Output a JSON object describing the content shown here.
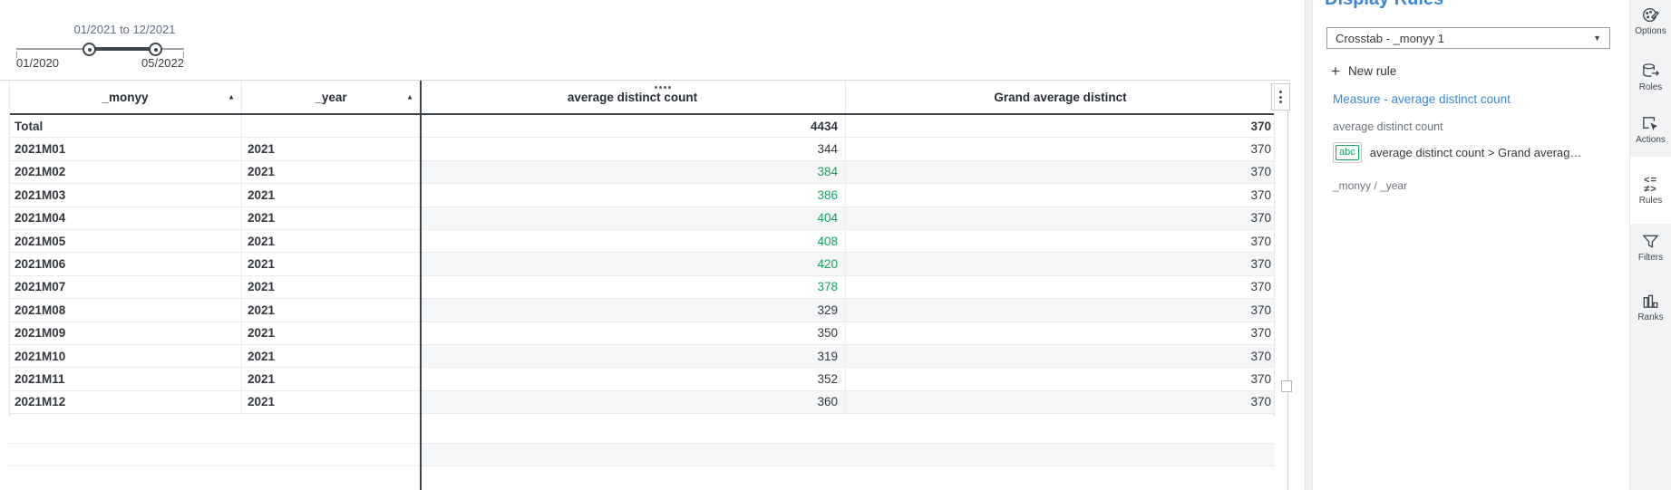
{
  "slider": {
    "selected_range": "01/2021 to 12/2021",
    "min_label": "01/2020",
    "max_label": "05/2022"
  },
  "crosstab": {
    "columns": [
      {
        "label": "_monyy",
        "sortable": true,
        "sort": "asc"
      },
      {
        "label": "_year",
        "sortable": true,
        "sort": "asc"
      },
      {
        "label": "average distinct count",
        "sortable": false
      },
      {
        "label": "Grand average distinct",
        "sortable": false
      }
    ],
    "rows": [
      {
        "monyy": "Total",
        "year": "",
        "avg": "4434",
        "grand": "370",
        "total": true
      },
      {
        "monyy": "2021M01",
        "year": "2021",
        "avg": "344",
        "grand": "370"
      },
      {
        "monyy": "2021M02",
        "year": "2021",
        "avg": "384",
        "grand": "370",
        "rule_hit": true
      },
      {
        "monyy": "2021M03",
        "year": "2021",
        "avg": "386",
        "grand": "370",
        "rule_hit": true
      },
      {
        "monyy": "2021M04",
        "year": "2021",
        "avg": "404",
        "grand": "370",
        "rule_hit": true
      },
      {
        "monyy": "2021M05",
        "year": "2021",
        "avg": "408",
        "grand": "370",
        "rule_hit": true
      },
      {
        "monyy": "2021M06",
        "year": "2021",
        "avg": "420",
        "grand": "370",
        "rule_hit": true
      },
      {
        "monyy": "2021M07",
        "year": "2021",
        "avg": "378",
        "grand": "370",
        "rule_hit": true
      },
      {
        "monyy": "2021M08",
        "year": "2021",
        "avg": "329",
        "grand": "370"
      },
      {
        "monyy": "2021M09",
        "year": "2021",
        "avg": "350",
        "grand": "370"
      },
      {
        "monyy": "2021M10",
        "year": "2021",
        "avg": "319",
        "grand": "370"
      },
      {
        "monyy": "2021M11",
        "year": "2021",
        "avg": "352",
        "grand": "370"
      },
      {
        "monyy": "2021M12",
        "year": "2021",
        "avg": "360",
        "grand": "370",
        "rule_hit": false
      }
    ]
  },
  "panel": {
    "title": "Display Rules",
    "object_selector_value": "Crosstab - _monyy 1",
    "new_rule_label": "New rule",
    "measure_link": "Measure - average distinct count",
    "rule_group_label": "average distinct count",
    "rule_chip": "abc",
    "rule_text": "average distinct count > Grand averag…",
    "hierarchy_label": "_monyy / _year"
  },
  "rail": {
    "items": [
      {
        "id": "options",
        "label": "Options",
        "icon": "options-icon",
        "active": false
      },
      {
        "id": "roles",
        "label": "Roles",
        "icon": "roles-icon",
        "active": false
      },
      {
        "id": "actions",
        "label": "Actions",
        "icon": "actions-icon",
        "active": false
      },
      {
        "id": "rules",
        "label": "Rules",
        "icon": "rules-icon",
        "active": true
      },
      {
        "id": "filters",
        "label": "Filters",
        "icon": "filters-icon",
        "active": false
      },
      {
        "id": "ranks",
        "label": "Ranks",
        "icon": "ranks-icon",
        "active": false
      }
    ]
  },
  "colors": {
    "rule_positive_green": "#14a160",
    "accent_blue": "#3b87d6"
  }
}
